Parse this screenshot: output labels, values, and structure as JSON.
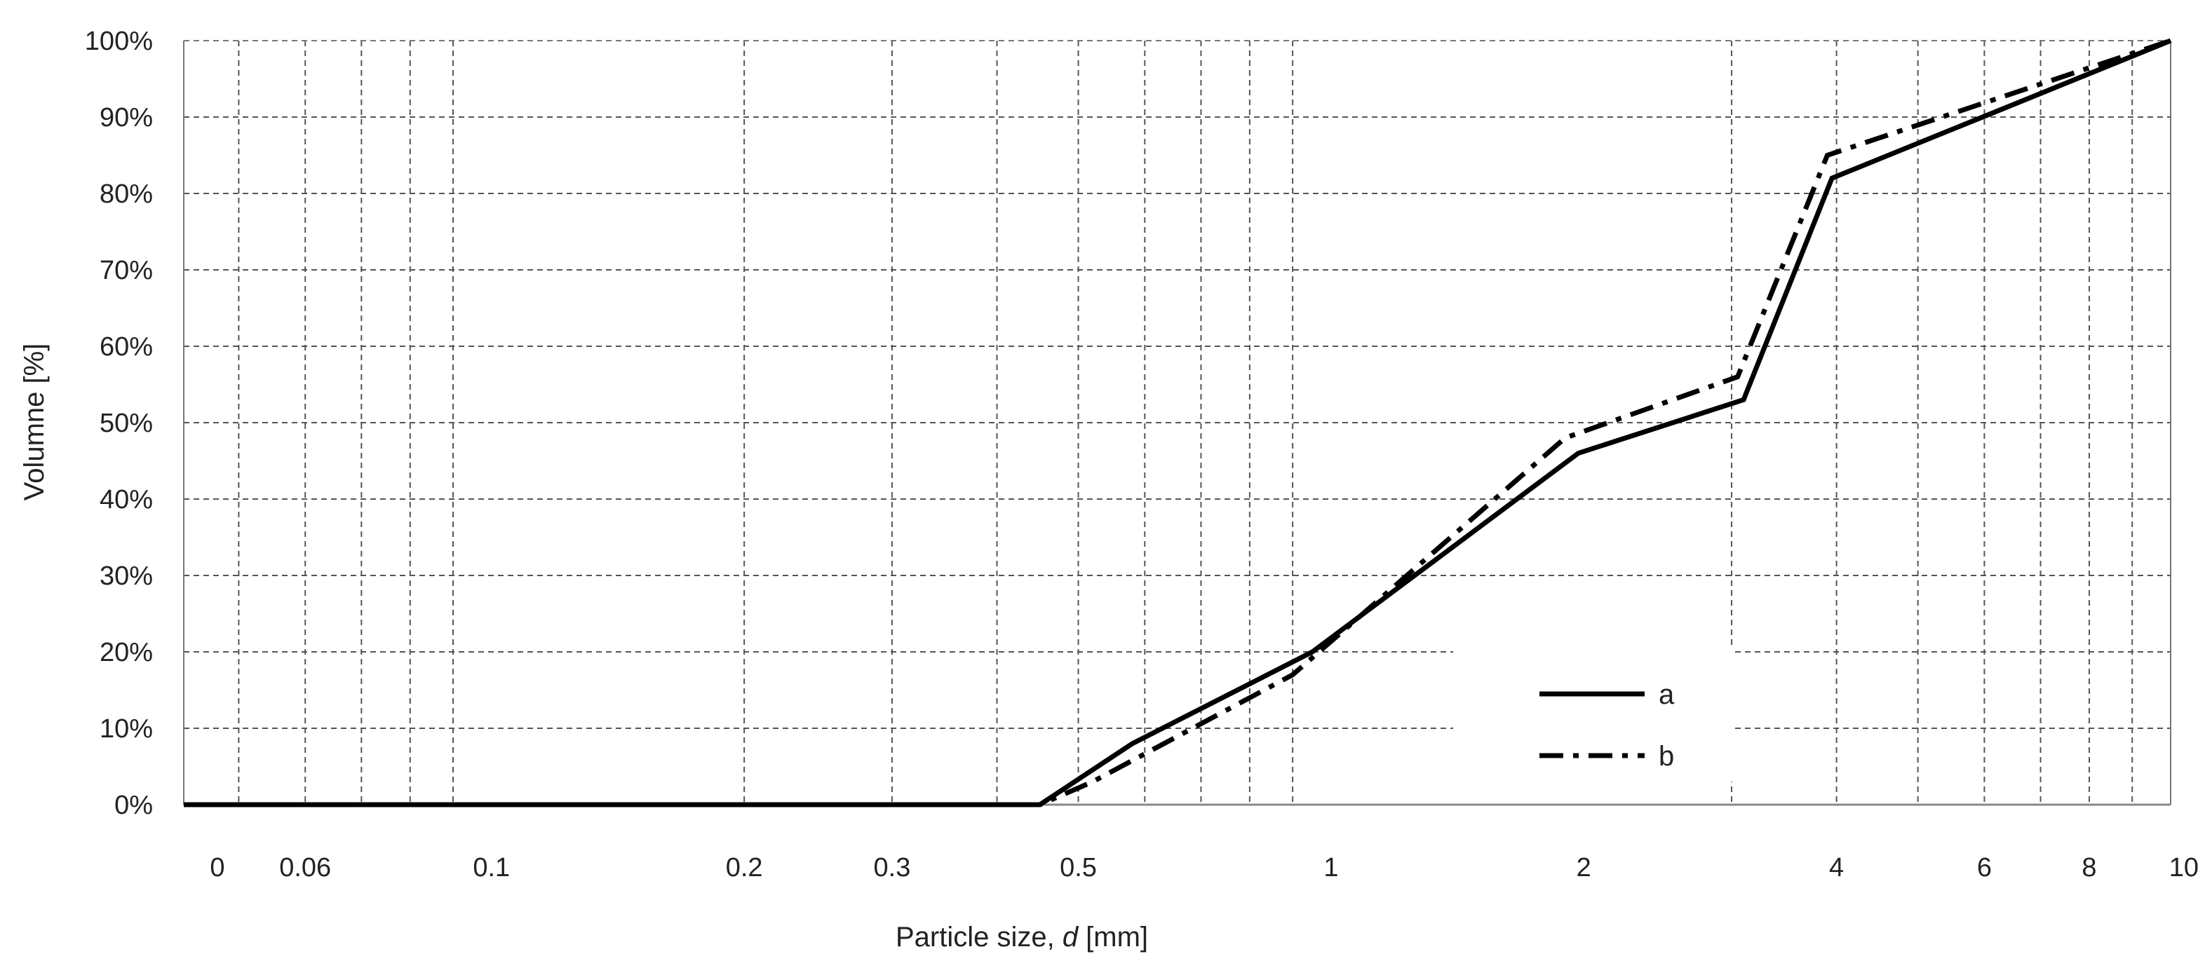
{
  "chart_data": {
    "type": "line",
    "title": "",
    "xlabel_prefix": "Particle size, ",
    "xlabel_var": "d",
    "xlabel_suffix": " [mm]",
    "ylabel": "Volumne [%]",
    "x_ticks": [
      {
        "label": "0",
        "value": 0.043
      },
      {
        "label": "0.06",
        "value": 0.06
      },
      {
        "label": "0.1",
        "value": 0.1
      },
      {
        "label": "0.2",
        "value": 0.2
      },
      {
        "label": "0.3",
        "value": 0.3
      },
      {
        "label": "0.5",
        "value": 0.5
      },
      {
        "label": "1",
        "value": 1
      },
      {
        "label": "2",
        "value": 2
      },
      {
        "label": "4",
        "value": 4
      },
      {
        "label": "6",
        "value": 6
      },
      {
        "label": "8",
        "value": 8
      },
      {
        "label": "10",
        "value": 10
      }
    ],
    "x_gridlines": [
      0.05,
      0.06,
      0.07,
      0.08,
      0.09,
      0.2,
      0.3,
      0.4,
      0.5,
      0.6,
      0.7,
      0.8,
      0.9,
      3,
      4,
      5,
      6,
      7,
      8,
      9
    ],
    "xlim": [
      0.043,
      10
    ],
    "x_scale": "log",
    "ylim": [
      0,
      100
    ],
    "y_ticks": [
      "0%",
      "10%",
      "20%",
      "30%",
      "40%",
      "50%",
      "60%",
      "70%",
      "80%",
      "90%",
      "100%"
    ],
    "y_tick_values": [
      0,
      10,
      20,
      30,
      40,
      50,
      60,
      70,
      80,
      90,
      100
    ],
    "grid": true,
    "legend_position": "bottom-right",
    "series": [
      {
        "name": "a",
        "style": "solid",
        "color": "#000000",
        "points": [
          [
            0.043,
            0
          ],
          [
            0.45,
            0
          ],
          [
            0.58,
            8
          ],
          [
            0.95,
            20
          ],
          [
            1.97,
            46
          ],
          [
            3.1,
            53
          ],
          [
            3.95,
            82
          ],
          [
            10,
            100
          ]
        ]
      },
      {
        "name": "b",
        "style": "dash-dot",
        "color": "#000000",
        "points": [
          [
            0.043,
            0
          ],
          [
            0.45,
            0
          ],
          [
            0.52,
            3
          ],
          [
            0.9,
            17
          ],
          [
            1.9,
            48
          ],
          [
            3.05,
            56
          ],
          [
            3.9,
            85
          ],
          [
            10,
            100
          ]
        ]
      }
    ]
  }
}
